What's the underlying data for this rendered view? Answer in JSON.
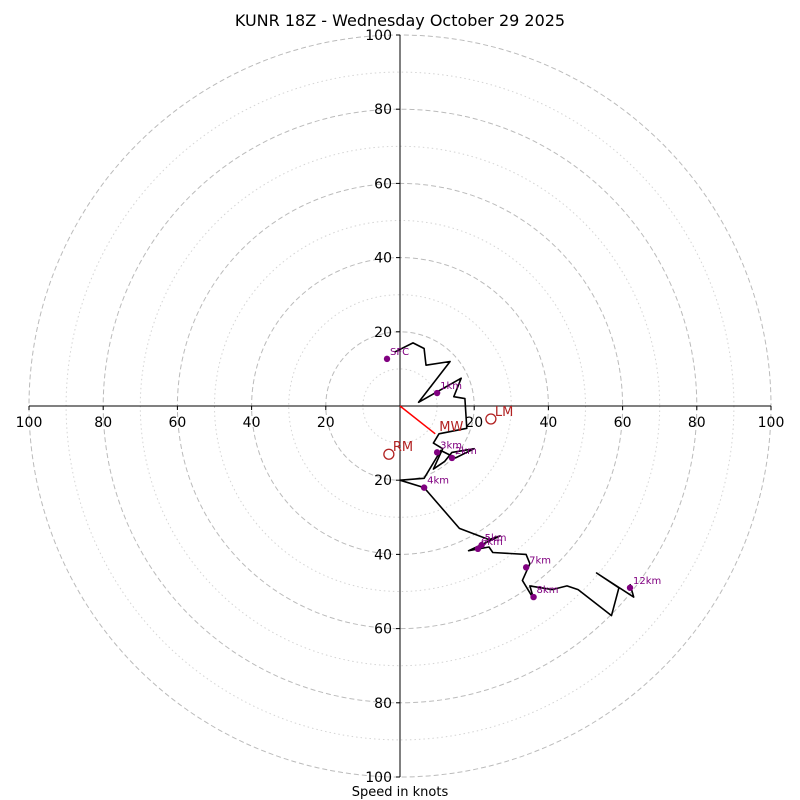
{
  "chart_data": {
    "type": "line",
    "subtype": "hodograph",
    "title": "KUNR 18Z - Wednesday October 29 2025",
    "xlabel": "Speed in knots",
    "max_speed": 100,
    "ring_solid_step": 20,
    "ring_dotted_step": 10,
    "ticks": {
      "left": [
        "100",
        "80",
        "60",
        "40",
        "20"
      ],
      "right": [
        "20",
        "40",
        "60",
        "80",
        "100"
      ],
      "up": [
        "20",
        "40",
        "60",
        "80",
        "100"
      ],
      "down": [
        "20",
        "40",
        "60",
        "80",
        "100"
      ]
    },
    "tick_values": [
      20,
      40,
      60,
      80,
      100
    ],
    "colors": {
      "trace": "#000000",
      "height_marker": "#800080",
      "storm_motion": "#b22222",
      "mean_wind_vector": "#ff0000",
      "grid": "#bbbbbb"
    },
    "trace_uv": [
      [
        -1.5,
        14.5
      ],
      [
        3.5,
        17
      ],
      [
        6.5,
        15.5
      ],
      [
        7,
        11
      ],
      [
        13.5,
        12
      ],
      [
        5,
        1
      ],
      [
        16.5,
        7.5
      ],
      [
        14.5,
        2.5
      ],
      [
        17.5,
        2
      ],
      [
        18,
        -6
      ],
      [
        10.5,
        -7.5
      ],
      [
        9,
        -10
      ],
      [
        11.5,
        -11.5
      ],
      [
        9,
        -17
      ],
      [
        12,
        -15
      ],
      [
        14,
        -12.5
      ],
      [
        20,
        -11.5
      ],
      [
        15,
        -14
      ],
      [
        11,
        -12
      ],
      [
        6.5,
        -19.5
      ],
      [
        0,
        -20
      ],
      [
        6.5,
        -22
      ],
      [
        16,
        -33
      ],
      [
        24,
        -36
      ],
      [
        27,
        -35
      ],
      [
        18.5,
        -39
      ],
      [
        24,
        -38
      ],
      [
        25,
        -39.5
      ],
      [
        34,
        -40
      ],
      [
        35,
        -42.5
      ],
      [
        33,
        -47
      ],
      [
        36,
        -52
      ],
      [
        35,
        -48.5
      ],
      [
        41,
        -49.5
      ],
      [
        45,
        -48.5
      ],
      [
        48,
        -49.5
      ],
      [
        57,
        -56.5
      ],
      [
        59,
        -49
      ],
      [
        53,
        -45
      ],
      [
        63,
        -51.5
      ],
      [
        62,
        -48
      ]
    ],
    "height_markers": [
      {
        "label": "SFC",
        "u": -3.5,
        "v": 12.7
      },
      {
        "label": "1km",
        "u": 10,
        "v": 3.5
      },
      {
        "label": "3km",
        "u": 10,
        "v": -12.5
      },
      {
        "label": "2km",
        "u": 14,
        "v": -14
      },
      {
        "label": "4km",
        "u": 6.5,
        "v": -22
      },
      {
        "label": "5km",
        "u": 22,
        "v": -37.5
      },
      {
        "label": "6km",
        "u": 21,
        "v": -38.5
      },
      {
        "label": "7km",
        "u": 34,
        "v": -43.5
      },
      {
        "label": "8km",
        "u": 36,
        "v": -51.5
      },
      {
        "label": "12km",
        "u": 62,
        "v": -49
      }
    ],
    "storm_motions": [
      {
        "label": "LM",
        "u": 24.5,
        "v": -3.5
      },
      {
        "label": "RM",
        "u": -3,
        "v": -13
      },
      {
        "label": "MW",
        "u": 9.5,
        "v": -7.5
      }
    ],
    "mean_wind_vector": {
      "from": [
        0,
        0
      ],
      "to": [
        9.5,
        -7.5
      ]
    }
  }
}
